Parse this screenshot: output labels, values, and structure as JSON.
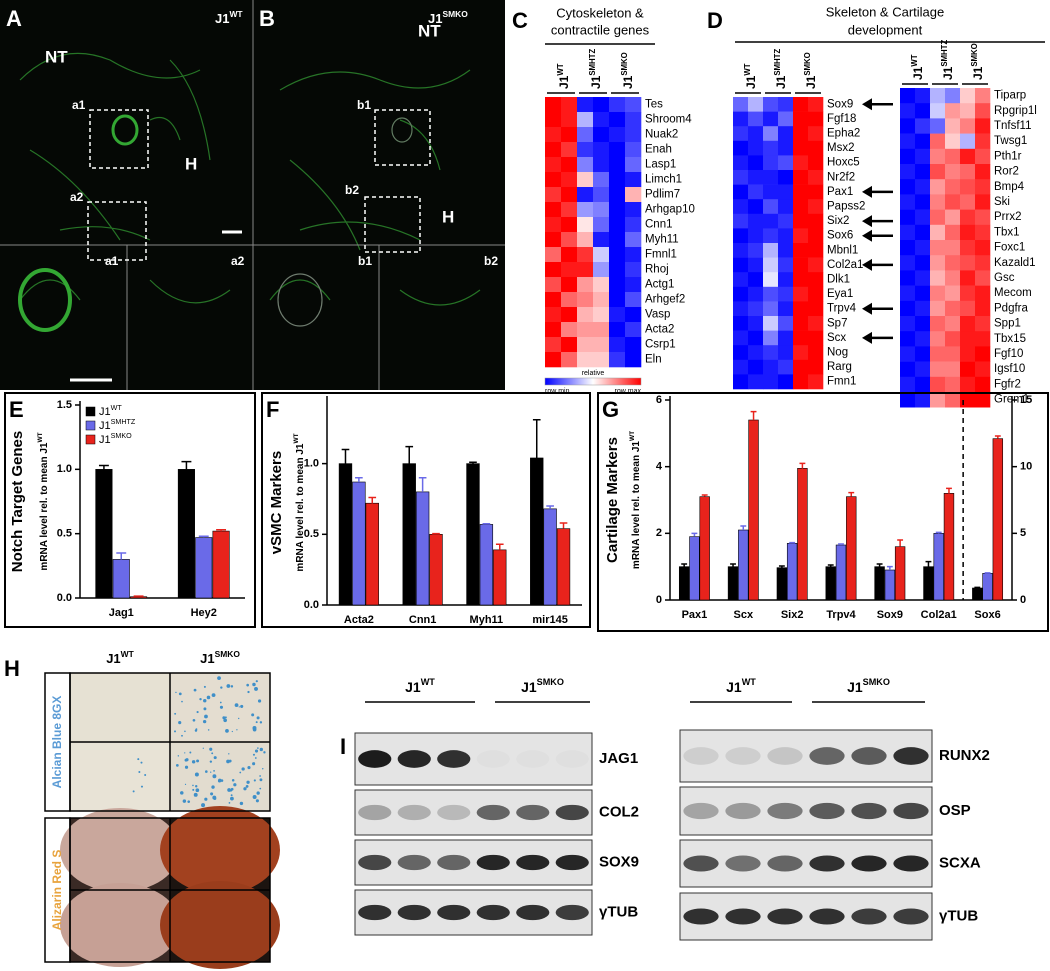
{
  "panel_a": {
    "letter": "A",
    "label": {
      "base": "J1",
      "sup": "WT"
    },
    "nt": "NT",
    "h": "H",
    "boxes": [
      "a1",
      "a2"
    ],
    "insets": [
      "a1",
      "a2"
    ]
  },
  "panel_b": {
    "letter": "B",
    "label": {
      "base": "J1",
      "sup": "SMKO"
    },
    "nt": "NT",
    "h": "H",
    "boxes": [
      "b1",
      "b2"
    ],
    "insets": [
      "b1",
      "b2"
    ]
  },
  "heatmap_c": {
    "letter": "C",
    "title": [
      "Cytoskeleton &",
      "contractile genes"
    ],
    "groups": [
      {
        "base": "J1",
        "sup": "WT"
      },
      {
        "base": "J1",
        "sup": "SMHTZ"
      },
      {
        "base": "J1",
        "sup": "SMKO"
      }
    ],
    "genes": [
      "Tes",
      "Shroom4",
      "Nuak2",
      "Enah",
      "Lasp1",
      "Limch1",
      "Pdlim7",
      "Arhgap10",
      "Cnn1",
      "Myh11",
      "Fmnl1",
      "Rhoj",
      "Actg1",
      "Arhgef2",
      "Vasp",
      "Acta2",
      "Csrp1",
      "Eln"
    ],
    "values": [
      [
        1,
        0.9,
        -0.9,
        -1,
        -0.8,
        -0.7
      ],
      [
        1,
        0.9,
        -0.3,
        -0.9,
        -1,
        -0.8
      ],
      [
        0.9,
        1,
        -0.6,
        -1,
        -0.9,
        -0.8
      ],
      [
        1,
        0.8,
        -0.8,
        -0.9,
        -1,
        -0.7
      ],
      [
        0.9,
        1,
        -0.5,
        -0.9,
        -1,
        -0.6
      ],
      [
        1,
        0.9,
        0.2,
        -0.6,
        -1,
        -0.9
      ],
      [
        0.8,
        1,
        -0.9,
        -0.7,
        -1,
        0.3
      ],
      [
        1,
        0.8,
        -0.4,
        -0.5,
        -1,
        -0.9
      ],
      [
        0.9,
        1,
        0.1,
        -0.6,
        -1,
        -0.8
      ],
      [
        1,
        0.7,
        0.3,
        -0.9,
        -1,
        -0.6
      ],
      [
        0.6,
        1,
        0.8,
        -0.2,
        -1,
        -0.9
      ],
      [
        1,
        0.9,
        0.9,
        -0.4,
        -1,
        -0.8
      ],
      [
        0.7,
        1,
        0.4,
        0.2,
        -1,
        -0.9
      ],
      [
        1,
        0.6,
        0.5,
        0.3,
        -1,
        -0.7
      ],
      [
        0.9,
        1,
        0.3,
        0.2,
        -0.9,
        -1
      ],
      [
        1,
        0.5,
        0.4,
        0.4,
        -1,
        -0.8
      ],
      [
        0.8,
        1,
        0.3,
        0.3,
        -0.9,
        -1
      ],
      [
        1,
        0.6,
        0.2,
        0.2,
        -0.8,
        -1
      ]
    ],
    "colorbar": {
      "title": "relative",
      "min": "row min",
      "max": "row max"
    }
  },
  "heatmap_d": {
    "letter": "D",
    "title": [
      "Skeleton & Cartilage",
      "development"
    ],
    "left": {
      "groups": [
        {
          "base": "J1",
          "sup": "WT"
        },
        {
          "base": "J1",
          "sup": "SMHTZ"
        },
        {
          "base": "J1",
          "sup": "SMKO"
        }
      ],
      "genes": [
        "Sox9",
        "Fgf18",
        "Epha2",
        "Msx2",
        "Hoxc5",
        "Nr2f2",
        "Pax1",
        "Papss2",
        "Six2",
        "Sox6",
        "Mbnl1",
        "Col2a1",
        "Dlk1",
        "Eya1",
        "Trpv4",
        "Sp7",
        "Scx",
        "Nog",
        "Rarg",
        "Fmn1"
      ],
      "values": [
        [
          -0.6,
          -0.3,
          -0.7,
          -0.8,
          1,
          0.9
        ],
        [
          -0.9,
          -0.7,
          -0.9,
          -0.6,
          1,
          1
        ],
        [
          -0.8,
          -0.9,
          -0.5,
          -0.9,
          1,
          0.9
        ],
        [
          -1,
          -0.9,
          -0.8,
          -0.9,
          1,
          1
        ],
        [
          -0.9,
          -1,
          -0.8,
          -0.7,
          0.9,
          1
        ],
        [
          -0.8,
          -0.9,
          -0.9,
          -1,
          1,
          0.9
        ],
        [
          -1,
          -0.8,
          -0.9,
          -0.9,
          1,
          1
        ],
        [
          -0.9,
          -1,
          -0.7,
          -0.9,
          1,
          0.9
        ],
        [
          -0.8,
          -0.9,
          -0.9,
          -0.8,
          1,
          1
        ],
        [
          -1,
          -0.9,
          -0.8,
          -0.9,
          0.9,
          1
        ],
        [
          -0.9,
          -0.8,
          -0.3,
          -0.9,
          1,
          1
        ],
        [
          -1,
          -0.9,
          -0.2,
          -0.8,
          1,
          0.9
        ],
        [
          -0.9,
          -1,
          -0.1,
          -0.9,
          1,
          1
        ],
        [
          -1,
          -0.9,
          -0.7,
          -0.8,
          0.9,
          1
        ],
        [
          -0.9,
          -0.8,
          -0.6,
          -0.9,
          1,
          1
        ],
        [
          -1,
          -0.9,
          -0.2,
          -0.7,
          1,
          0.9
        ],
        [
          -0.9,
          -1,
          -0.5,
          -0.9,
          1,
          1
        ],
        [
          -1,
          -0.9,
          -0.8,
          -0.9,
          0.9,
          1
        ],
        [
          -0.9,
          -1,
          -0.9,
          -0.8,
          1,
          1
        ],
        [
          -1,
          -0.9,
          -0.9,
          -1,
          1,
          0.9
        ]
      ]
    },
    "right": {
      "groups": [
        {
          "base": "J1",
          "sup": "WT"
        },
        {
          "base": "J1",
          "sup": "SMHTZ"
        },
        {
          "base": "J1",
          "sup": "SMKO"
        }
      ],
      "genes": [
        "Tiparp",
        "Rpgrip1l",
        "Tnfsf11",
        "Twsg1",
        "Pth1r",
        "Ror2",
        "Bmp4",
        "Ski",
        "Prrx2",
        "Tbx1",
        "Foxc1",
        "Kazald1",
        "Gsc",
        "Mecom",
        "Pdgfra",
        "Spp1",
        "Tbx15",
        "Fgf10",
        "Igsf10",
        "Fgfr2",
        "Grem1"
      ],
      "values": [
        [
          -1,
          -0.9,
          -0.3,
          -0.5,
          0.2,
          0.5
        ],
        [
          -0.9,
          -1,
          -0.2,
          0.4,
          0.3,
          0.7
        ],
        [
          -1,
          -0.8,
          -0.6,
          0.3,
          0.5,
          0.9
        ],
        [
          -0.9,
          -1,
          0.6,
          0.2,
          -0.3,
          0.8
        ],
        [
          -1,
          -0.9,
          0.5,
          0.6,
          0.9,
          0.7
        ],
        [
          -0.9,
          -1,
          0.7,
          0.5,
          0.6,
          0.9
        ],
        [
          -1,
          -0.9,
          0.4,
          0.6,
          0.7,
          0.8
        ],
        [
          -0.9,
          -1,
          0.5,
          0.7,
          0.6,
          0.9
        ],
        [
          -1,
          -0.9,
          0.6,
          0.4,
          0.8,
          0.7
        ],
        [
          -0.9,
          -1,
          0.3,
          0.6,
          0.9,
          0.8
        ],
        [
          -1,
          -0.9,
          0.5,
          0.5,
          0.8,
          0.9
        ],
        [
          -0.9,
          -1,
          0.4,
          0.6,
          0.7,
          0.8
        ],
        [
          -1,
          -0.9,
          0.3,
          0.5,
          0.9,
          0.7
        ],
        [
          -0.9,
          -1,
          0.5,
          0.4,
          0.8,
          0.9
        ],
        [
          -1,
          -0.9,
          0.4,
          0.6,
          0.7,
          0.9
        ],
        [
          -0.9,
          -1,
          0.6,
          0.5,
          0.9,
          0.8
        ],
        [
          -1,
          -0.9,
          0.5,
          0.7,
          0.9,
          0.9
        ],
        [
          -0.9,
          -1,
          0.6,
          0.6,
          0.9,
          1
        ],
        [
          -1,
          -0.9,
          0.5,
          0.5,
          1,
          0.9
        ],
        [
          -0.9,
          -1,
          0.7,
          0.6,
          0.9,
          1
        ],
        [
          -1,
          -0.9,
          0.4,
          0.6,
          1,
          1
        ]
      ]
    }
  },
  "chart_data": [
    {
      "type": "bar",
      "letter": "E",
      "title": "Notch Target Genes",
      "ylabel": {
        "base": "mRNA level rel. to mean J1",
        "sup": "WT"
      },
      "categories": [
        "Jag1",
        "Hey2"
      ],
      "series": [
        {
          "name": "J1",
          "name_sup": "WT",
          "color": "#000000",
          "values": [
            1.0,
            1.0
          ],
          "errors": [
            0.03,
            0.06
          ]
        },
        {
          "name": "J1",
          "name_sup": "SMHTZ",
          "color": "#6a6ae8",
          "values": [
            0.3,
            0.47
          ],
          "errors": [
            0.05,
            0.01
          ]
        },
        {
          "name": "J1",
          "name_sup": "SMKO",
          "color": "#e8231c",
          "values": [
            0.01,
            0.52
          ],
          "errors": [
            0.005,
            0.01
          ]
        }
      ],
      "ylim": [
        0,
        1.5
      ],
      "yticks": [
        {
          "value": 0,
          "label": "0.0"
        },
        0.5,
        {
          "value": 1,
          "label": "1.0"
        },
        1.5
      ],
      "legend": "upper left"
    },
    {
      "type": "bar",
      "letter": "F",
      "title": "vSMC Markers",
      "ylabel": {
        "base": "mRNA level rel. to mean J1",
        "sup": "WT"
      },
      "categories": [
        "Acta2",
        "Cnn1",
        "Myh11",
        "mir145"
      ],
      "series": [
        {
          "color": "#000000",
          "values": [
            1.0,
            1.0,
            1.0,
            1.04
          ],
          "errors": [
            0.1,
            0.12,
            0.01,
            0.27
          ]
        },
        {
          "color": "#6a6ae8",
          "values": [
            0.87,
            0.8,
            0.57,
            0.68
          ],
          "errors": [
            0.03,
            0.1,
            0.005,
            0.02
          ]
        },
        {
          "color": "#e8231c",
          "values": [
            0.72,
            0.5,
            0.39,
            0.54
          ],
          "errors": [
            0.04,
            0.005,
            0.04,
            0.04
          ]
        }
      ],
      "ylim": [
        0,
        1.45
      ],
      "yticks": [
        {
          "value": 0,
          "label": "0.0"
        },
        0.5,
        {
          "value": 1,
          "label": "1.0"
        }
      ]
    },
    {
      "type": "bar",
      "letter": "G",
      "title": "Cartilage Markers",
      "ylabel": {
        "base": "mRNA level rel. to mean J1",
        "sup": "WT"
      },
      "categories": [
        "Pax1",
        "Scx",
        "Six2",
        "Trpv4",
        "Sox9",
        "Col2a1",
        "Sox6"
      ],
      "series": [
        {
          "color": "#000000",
          "values": [
            1.0,
            1.0,
            0.97,
            1.0,
            1.0,
            1.0,
            null
          ],
          "errors": [
            0.08,
            0.08,
            0.05,
            0.05,
            0.08,
            0.15,
            null
          ]
        },
        {
          "color": "#6a6ae8",
          "values": [
            1.9,
            2.1,
            1.7,
            1.65,
            0.9,
            2.0,
            null
          ],
          "errors": [
            0.1,
            0.12,
            0.02,
            0.03,
            0.1,
            0.03,
            null
          ]
        },
        {
          "color": "#e8231c",
          "values": [
            3.1,
            5.4,
            3.95,
            3.1,
            1.6,
            3.2,
            null
          ],
          "errors": [
            0.05,
            0.25,
            0.15,
            0.12,
            0.2,
            0.15,
            null
          ]
        },
        {
          "color": "#000000",
          "axis": "y2",
          "values": [
            null,
            null,
            null,
            null,
            null,
            null,
            0.9
          ],
          "errors": [
            null,
            null,
            null,
            null,
            null,
            null,
            0.05
          ]
        },
        {
          "color": "#6a6ae8",
          "axis": "y2",
          "values": [
            null,
            null,
            null,
            null,
            null,
            null,
            2.0
          ],
          "errors": [
            null,
            null,
            null,
            null,
            null,
            null,
            0.03
          ]
        },
        {
          "color": "#e8231c",
          "axis": "y2",
          "values": [
            null,
            null,
            null,
            null,
            null,
            null,
            12.1
          ],
          "errors": [
            null,
            null,
            null,
            null,
            null,
            null,
            0.2
          ]
        }
      ],
      "ylim": [
        0,
        6
      ],
      "yticks": [
        0,
        2,
        4,
        6
      ],
      "y2lim": [
        0,
        15
      ],
      "y2ticks": [
        0,
        5,
        10,
        15
      ]
    }
  ],
  "panel_h": {
    "letter": "H",
    "columns": [
      {
        "base": "J1",
        "sup": "WT"
      },
      {
        "base": "J1",
        "sup": "SMKO"
      }
    ],
    "rows": [
      "Alcian Blue 8GX",
      "Alizarin Red S"
    ]
  },
  "panel_i": {
    "letter": "I",
    "blots": [
      {
        "groups": [
          {
            "base": "J1",
            "sup": "WT"
          },
          {
            "base": "J1",
            "sup": "SMKO"
          }
        ],
        "bands": [
          "JAG1",
          "COL2",
          "SOX9",
          "γTUB"
        ]
      },
      {
        "groups": [
          {
            "base": "J1",
            "sup": "WT"
          },
          {
            "base": "J1",
            "sup": "SMKO"
          }
        ],
        "bands": [
          "RUNX2",
          "OSP",
          "SCXA",
          "γTUB"
        ]
      }
    ]
  }
}
